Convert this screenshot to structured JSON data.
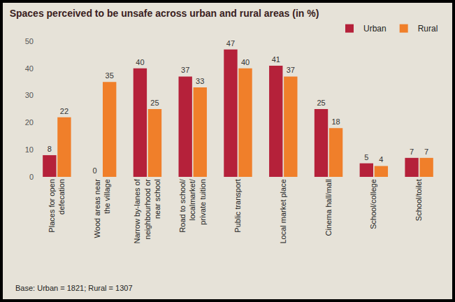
{
  "chart_data": {
    "type": "bar",
    "title": "Spaces perceived to be unsafe across urban and rural areas (in %)",
    "categories": [
      "Places for open defecation",
      "Wood areas near the village",
      "Narrow by-lanes of neighbourhood or near school",
      "Road to school/ localmarket/ private tuition",
      "Public transport",
      "Local market place",
      "Cinema hall/mall",
      "School/college",
      "School/toilet"
    ],
    "series": [
      {
        "name": "Urban",
        "color": "#b5213a",
        "values": [
          8,
          0,
          40,
          37,
          47,
          41,
          25,
          5,
          7
        ]
      },
      {
        "name": "Rural",
        "color": "#f07f2a",
        "values": [
          22,
          35,
          25,
          33,
          40,
          37,
          18,
          4,
          7
        ]
      }
    ],
    "ylim": [
      0,
      50
    ],
    "yticks": [
      0,
      10,
      20,
      30,
      40,
      50
    ],
    "grid": false,
    "legend": "top right",
    "data_labels": true,
    "annotations": [
      "Base: Urban = 1821; Rural = 1307"
    ]
  }
}
